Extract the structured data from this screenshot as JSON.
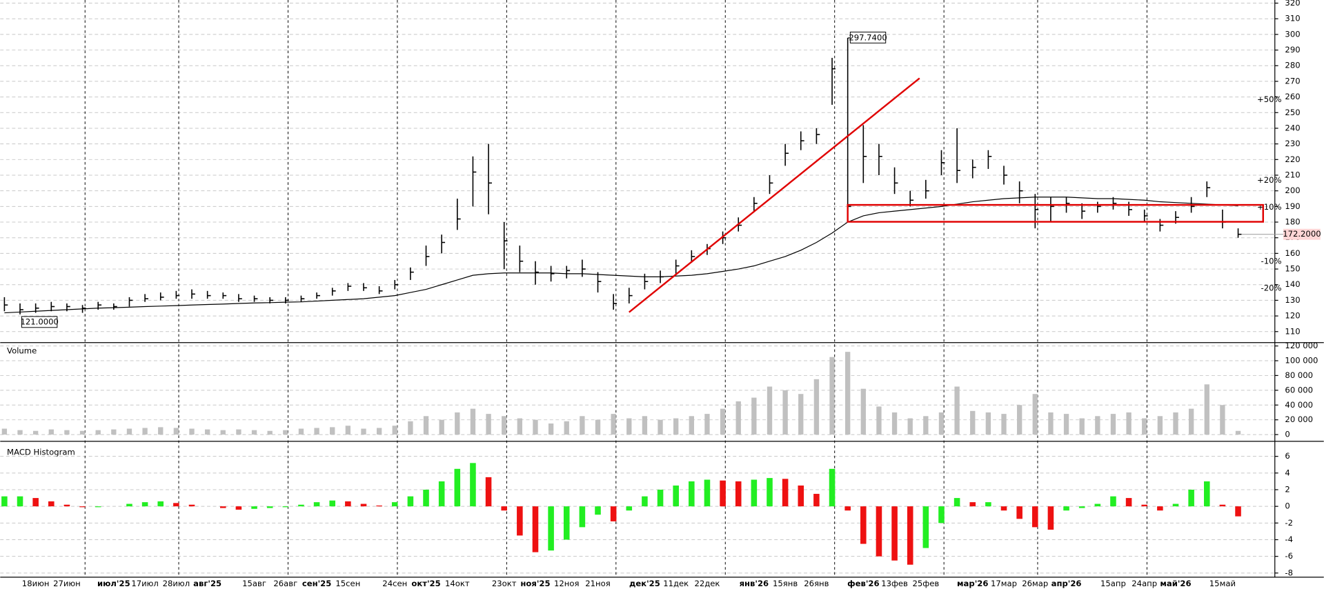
{
  "chart_data": {
    "type": "ohlc",
    "color": "#000000",
    "grid": true,
    "categories": [
      null,
      null,
      "18июн",
      null,
      "27июн",
      null,
      null,
      "июл'25",
      null,
      "17июл",
      null,
      "28июл",
      null,
      "авг'25",
      null,
      null,
      "15авг",
      null,
      "26авг",
      null,
      "сен'25",
      null,
      "15сен",
      null,
      null,
      "24сен",
      null,
      "окт'25",
      null,
      "14окт",
      null,
      null,
      "23окт",
      null,
      "ноя'25",
      null,
      "12ноя",
      null,
      "21ноя",
      null,
      null,
      "дек'25",
      null,
      "11дек",
      null,
      "22дек",
      null,
      null,
      "янв'26",
      null,
      "15янв",
      null,
      "26янв",
      null,
      null,
      "фев'26",
      null,
      "13фев",
      null,
      "25фев",
      null,
      null,
      "мар'26",
      null,
      "17мар",
      null,
      "26мар",
      null,
      "апр'26",
      null,
      null,
      "15апр",
      null,
      "24апр",
      null,
      "май'26",
      null,
      null,
      "15май",
      null
    ],
    "high": [
      132,
      128,
      128,
      129,
      128,
      127,
      129,
      128,
      132,
      134,
      135,
      136,
      137,
      136,
      135,
      134,
      133,
      132,
      132,
      133,
      135,
      138,
      141,
      141,
      139,
      143,
      151,
      165,
      172,
      195,
      222,
      230,
      180,
      165,
      155,
      152,
      152,
      156,
      148,
      134,
      138,
      147,
      149,
      156,
      162,
      166,
      174,
      183,
      196,
      210,
      230,
      238,
      240,
      285,
      297.74,
      242,
      230,
      215,
      200,
      207,
      226,
      240,
      220,
      226,
      216,
      206,
      198,
      196,
      196,
      192,
      193,
      196,
      193,
      188,
      182,
      187,
      196,
      206,
      188,
      176
    ],
    "low": [
      123,
      121,
      122,
      123,
      123,
      122,
      124,
      124,
      126,
      129,
      130,
      131,
      131,
      131,
      131,
      129,
      129,
      128,
      128,
      129,
      131,
      133,
      136,
      136,
      134,
      137,
      143,
      152,
      160,
      175,
      190,
      185,
      150,
      148,
      140,
      142,
      144,
      145,
      135,
      124,
      128,
      137,
      141,
      147,
      154,
      159,
      166,
      174,
      187,
      198,
      216,
      226,
      230,
      255,
      180,
      205,
      210,
      198,
      190,
      195,
      210,
      205,
      208,
      214,
      204,
      192,
      176,
      180,
      186,
      182,
      186,
      188,
      184,
      180,
      174,
      179,
      186,
      196,
      176,
      170
    ],
    "close": [
      127,
      124,
      125,
      126,
      126,
      125,
      127,
      126,
      130,
      131,
      132,
      133,
      134,
      133,
      133,
      131,
      131,
      130,
      130,
      131,
      133,
      136,
      139,
      138,
      136,
      140,
      148,
      158,
      167,
      182,
      212,
      205,
      168,
      155,
      148,
      147,
      149,
      150,
      142,
      128,
      133,
      142,
      145,
      152,
      158,
      163,
      170,
      178,
      192,
      205,
      224,
      232,
      236,
      278,
      190,
      222,
      222,
      205,
      194,
      200,
      218,
      213,
      215,
      222,
      210,
      200,
      188,
      190,
      192,
      187,
      190,
      192,
      188,
      184,
      178,
      183,
      190,
      202,
      180,
      172.2
    ],
    "ma": {
      "color": "#000000",
      "values": [
        122,
        122.5,
        123,
        123.5,
        124,
        124.5,
        125,
        125.3,
        125.6,
        126,
        126.3,
        126.6,
        127,
        127.3,
        127.6,
        128,
        128.3,
        128.5,
        128.8,
        129,
        129.5,
        130,
        130.5,
        131,
        132,
        133,
        135,
        137,
        140,
        143,
        146,
        147,
        147.5,
        147.5,
        147.5,
        147.5,
        147,
        147,
        146.5,
        146,
        145.5,
        145,
        145,
        145.5,
        146,
        147,
        148.5,
        150,
        152,
        155,
        158,
        162,
        167,
        173,
        180,
        184,
        186,
        187,
        188,
        189,
        190,
        191.5,
        193,
        194,
        195,
        195.5,
        196,
        196,
        196,
        195.5,
        195,
        195,
        194.5,
        194,
        193,
        192.5,
        192,
        191.5,
        191,
        190.5
      ]
    },
    "ylim": [
      103.5,
      322
    ],
    "yticks": [
      110,
      120,
      130,
      140,
      150,
      160,
      170,
      180,
      190,
      200,
      210,
      220,
      230,
      240,
      250,
      260,
      270,
      280,
      290,
      300,
      310,
      320
    ],
    "percent_ticks": [
      {
        "value": 258.3,
        "label": "+50%"
      },
      {
        "value": 206.64,
        "label": "+20%"
      },
      {
        "value": 189.42,
        "label": "+10%"
      },
      {
        "value": 154.98,
        "label": "-10%"
      },
      {
        "value": 137.76,
        "label": "-20%"
      }
    ],
    "percent_up_color": "#008000",
    "percent_down_color": "#8b0000",
    "high_label": {
      "value": 297.74,
      "label": "297.7400"
    },
    "low_label": {
      "value": 121,
      "label": "121.0000"
    },
    "last_label": {
      "value": 172.2,
      "label": "172.2000"
    },
    "trend_line": {
      "color": "#e00000",
      "from": [
        40,
        122.4
      ],
      "to": [
        58.6,
        272
      ]
    },
    "box": {
      "color": "#e00000",
      "from": [
        54,
        191
      ],
      "to": [
        80.6,
        180.2
      ]
    },
    "volume": {
      "title": "Volume",
      "color": "#c0c0c0",
      "values": [
        8000,
        6000,
        5000,
        7000,
        6000,
        5000,
        6000,
        7000,
        8000,
        9000,
        10000,
        9000,
        8000,
        7000,
        6000,
        7000,
        6000,
        5000,
        6000,
        8000,
        9000,
        10000,
        12000,
        8000,
        9000,
        12000,
        18000,
        25000,
        20000,
        30000,
        35000,
        28000,
        25000,
        22000,
        20000,
        15000,
        18000,
        25000,
        20000,
        28000,
        22000,
        25000,
        20000,
        22000,
        25000,
        28000,
        35000,
        45000,
        50000,
        65000,
        60000,
        55000,
        75000,
        105000,
        112000,
        62000,
        38000,
        30000,
        22000,
        25000,
        30000,
        65000,
        32000,
        30000,
        28000,
        40000,
        55000,
        30000,
        28000,
        22000,
        25000,
        28000,
        30000,
        22000,
        25000,
        30000,
        35000,
        68000,
        40000,
        5000
      ],
      "ylim": [
        -8000,
        123400
      ],
      "yticks": [
        0,
        {
          "value": 20000,
          "label": "20 000"
        },
        {
          "value": 40000,
          "label": "40 000"
        },
        {
          "value": 60000,
          "label": "60 000"
        },
        {
          "value": 80000,
          "label": "80 000"
        },
        {
          "value": 100000,
          "label": "100 000"
        },
        {
          "value": 120000,
          "label": "120 000"
        }
      ]
    },
    "macd": {
      "title": "MACD Histogram",
      "rise_color": "#22ee22",
      "fall_color": "#ee1111",
      "values": [
        1.2,
        1.2,
        1.0,
        0.6,
        0.2,
        -0.1,
        -0.1,
        0,
        0.3,
        0.5,
        0.6,
        0.4,
        0.2,
        0,
        -0.2,
        -0.4,
        -0.3,
        -0.2,
        -0.1,
        0.2,
        0.5,
        0.7,
        0.6,
        0.3,
        0.1,
        0.5,
        1.2,
        2.0,
        3.0,
        4.5,
        5.2,
        3.5,
        -0.5,
        -3.5,
        -5.5,
        -5.3,
        -4.0,
        -2.5,
        -1.0,
        -1.8,
        -0.5,
        1.2,
        2.0,
        2.5,
        3.0,
        3.2,
        3.1,
        3.0,
        3.2,
        3.4,
        3.3,
        2.5,
        1.5,
        4.5,
        -0.5,
        -4.5,
        -6.0,
        -6.5,
        -7.0,
        -5.0,
        -2.0,
        1.0,
        0.5,
        0.5,
        -0.5,
        -1.5,
        -2.5,
        -2.8,
        -0.5,
        -0.2,
        0.3,
        1.2,
        1.0,
        0.2,
        -0.5,
        0.3,
        2.0,
        3.0,
        0.2,
        -1.2
      ],
      "ylim": [
        -8.5,
        7.6
      ],
      "yticks": [
        6,
        4,
        2,
        0,
        -2,
        -4,
        -6,
        -8
      ]
    }
  }
}
